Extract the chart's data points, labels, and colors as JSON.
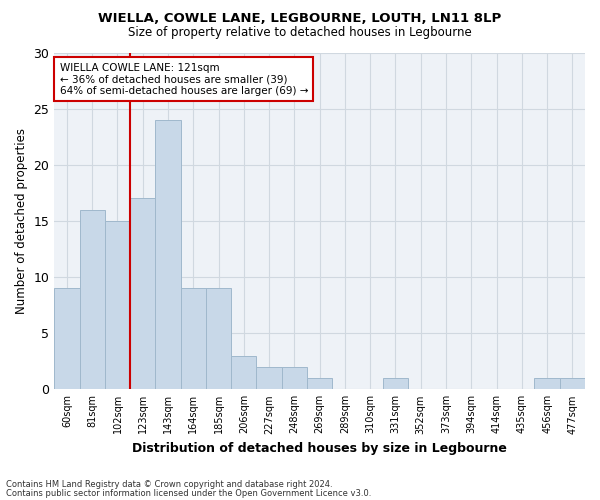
{
  "title1": "WIELLA, COWLE LANE, LEGBOURNE, LOUTH, LN11 8LP",
  "title2": "Size of property relative to detached houses in Legbourne",
  "xlabel": "Distribution of detached houses by size in Legbourne",
  "ylabel": "Number of detached properties",
  "categories": [
    "60sqm",
    "81sqm",
    "102sqm",
    "123sqm",
    "143sqm",
    "164sqm",
    "185sqm",
    "206sqm",
    "227sqm",
    "248sqm",
    "269sqm",
    "289sqm",
    "310sqm",
    "331sqm",
    "352sqm",
    "373sqm",
    "394sqm",
    "414sqm",
    "435sqm",
    "456sqm",
    "477sqm"
  ],
  "values": [
    9,
    16,
    15,
    17,
    24,
    9,
    9,
    3,
    2,
    2,
    1,
    0,
    0,
    1,
    0,
    0,
    0,
    0,
    0,
    1,
    1
  ],
  "bar_color": "#c8d8e8",
  "bar_edgecolor": "#a0b8cc",
  "vline_x": 2.5,
  "vline_color": "#cc0000",
  "annotation_text": "WIELLA COWLE LANE: 121sqm\n← 36% of detached houses are smaller (39)\n64% of semi-detached houses are larger (69) →",
  "annotation_box_color": "#ffffff",
  "annotation_box_edgecolor": "#cc0000",
  "ylim": [
    0,
    30
  ],
  "yticks": [
    0,
    5,
    10,
    15,
    20,
    25,
    30
  ],
  "footer1": "Contains HM Land Registry data © Crown copyright and database right 2024.",
  "footer2": "Contains public sector information licensed under the Open Government Licence v3.0.",
  "grid_color": "#d0d8e0",
  "background_color": "#eef2f7"
}
